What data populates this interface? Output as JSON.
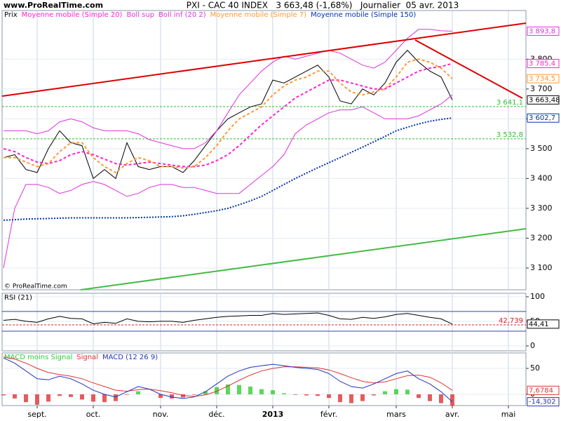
{
  "watermark": "www.ProRealTime.com",
  "copyright": "© ProRealTime.com",
  "title": "PXI - CAC 40 INDEX   3 663,48 (-1,68%)   Journalier  05 avr. 2013",
  "chart_data": [
    {
      "type": "line",
      "categories": [
        null,
        null,
        null,
        "sept.",
        null,
        null,
        null,
        null,
        "oct.",
        null,
        null,
        null,
        null,
        null,
        "nov.",
        null,
        null,
        null,
        null,
        "déc.",
        null,
        null,
        null,
        null,
        "2013",
        null,
        null,
        null,
        null,
        "févr.",
        null,
        null,
        null,
        null,
        null,
        "mars",
        null,
        null,
        null,
        null,
        "avr.",
        null,
        null,
        null,
        null,
        "mai",
        null
      ],
      "ylim": [
        3027,
        3963
      ],
      "yticks": [
        {
          "value": 3100,
          "label": "3 100"
        },
        {
          "value": 3200,
          "label": "3 200"
        },
        {
          "value": 3300,
          "label": "3 300"
        },
        {
          "value": 3400,
          "label": "3 400"
        },
        {
          "value": 3500,
          "label": "3 500"
        },
        {
          "value": 3600,
          "label": "3 600"
        },
        {
          "value": 3700,
          "label": "3 700"
        },
        {
          "value": 3800,
          "label": "3 800"
        }
      ],
      "levels": [
        {
          "value": 3641.1,
          "label": "3 641,1",
          "color": "#33bb33"
        },
        {
          "value": 3532.8,
          "label": "3 532,8",
          "color": "#33bb33"
        }
      ],
      "series": [
        {
          "name": "Prix",
          "color": "#000000",
          "style": "solid",
          "values": [
            3470,
            3480,
            3430,
            3420,
            3500,
            3560,
            3520,
            3510,
            3400,
            3430,
            3400,
            3520,
            3440,
            3430,
            3440,
            3440,
            3420,
            3460,
            3510,
            3560,
            3600,
            3620,
            3640,
            3650,
            3730,
            3720,
            3740,
            3760,
            3780,
            3740,
            3660,
            3650,
            3700,
            3680,
            3720,
            3790,
            3830,
            3790,
            3760,
            3740,
            3663.48,
            null,
            null,
            null,
            null,
            null,
            null
          ],
          "value_labels": [
            null,
            null,
            null,
            null,
            null,
            null,
            null,
            null,
            null,
            null,
            null,
            null,
            null,
            null,
            null,
            null,
            null,
            null,
            null,
            null,
            null,
            null,
            null,
            null,
            null,
            null,
            null,
            null,
            null,
            null,
            null,
            null,
            null,
            null,
            null,
            null,
            null,
            null,
            null,
            null,
            "3 663,48",
            null,
            null,
            null,
            null,
            null,
            null
          ]
        },
        {
          "name": "Moyenne mobile (Simple 20)",
          "color": "#ff22cc",
          "style": "dashed",
          "values": [
            3500,
            3490,
            3470,
            3455,
            3450,
            3460,
            3480,
            3490,
            3480,
            3465,
            3450,
            3445,
            3450,
            3455,
            3450,
            3445,
            3440,
            3440,
            3445,
            3460,
            3480,
            3510,
            3545,
            3580,
            3610,
            3640,
            3670,
            3690,
            3710,
            3730,
            3730,
            3720,
            3710,
            3700,
            3700,
            3720,
            3740,
            3760,
            3770,
            3775,
            3785.4,
            null,
            null,
            null,
            null,
            null,
            null
          ],
          "value_labels": [
            null,
            null,
            null,
            null,
            null,
            null,
            null,
            null,
            null,
            null,
            null,
            null,
            null,
            null,
            null,
            null,
            null,
            null,
            null,
            null,
            null,
            null,
            null,
            null,
            null,
            null,
            null,
            null,
            null,
            null,
            null,
            null,
            null,
            null,
            null,
            null,
            null,
            null,
            null,
            null,
            "3 785,4",
            null,
            null,
            null,
            null,
            null,
            null
          ]
        },
        {
          "name": "Boll sup",
          "color": "#dd33dd",
          "style": "solid",
          "values": [
            3560,
            3560,
            3560,
            3550,
            3560,
            3590,
            3600,
            3590,
            3570,
            3560,
            3560,
            3560,
            3550,
            3530,
            3520,
            3510,
            3500,
            3500,
            3520,
            3560,
            3620,
            3680,
            3720,
            3760,
            3790,
            3810,
            3800,
            3810,
            3820,
            3830,
            3820,
            3800,
            3780,
            3770,
            3790,
            3830,
            3870,
            3900,
            3900,
            3895,
            3893.8,
            null,
            null,
            null,
            null,
            null,
            null
          ],
          "value_labels": [
            null,
            null,
            null,
            null,
            null,
            null,
            null,
            null,
            null,
            null,
            null,
            null,
            null,
            null,
            null,
            null,
            null,
            null,
            null,
            null,
            null,
            null,
            null,
            null,
            null,
            null,
            null,
            null,
            null,
            null,
            null,
            null,
            null,
            null,
            null,
            null,
            null,
            null,
            null,
            null,
            "3 893,8",
            null,
            null,
            null,
            null,
            null,
            null
          ]
        },
        {
          "name": "Boll inf (20 2)",
          "color": "#dd33dd",
          "style": "solid",
          "values": [
            3100,
            3300,
            3380,
            3380,
            3370,
            3350,
            3360,
            3380,
            3390,
            3380,
            3360,
            3340,
            3350,
            3370,
            3380,
            3380,
            3370,
            3370,
            3360,
            3350,
            3350,
            3350,
            3380,
            3410,
            3440,
            3480,
            3550,
            3580,
            3600,
            3620,
            3630,
            3630,
            3640,
            3620,
            3600,
            3600,
            3600,
            3610,
            3630,
            3650,
            3680,
            null,
            null,
            null,
            null,
            null,
            null
          ]
        },
        {
          "name": "Moyenne mobile (Simple 7)",
          "color": "#ff9933",
          "style": "dashed",
          "values": [
            3470,
            3470,
            3455,
            3440,
            3450,
            3490,
            3520,
            3520,
            3470,
            3440,
            3420,
            3450,
            3470,
            3460,
            3440,
            3440,
            3435,
            3440,
            3470,
            3510,
            3560,
            3600,
            3620,
            3640,
            3680,
            3710,
            3730,
            3740,
            3760,
            3760,
            3720,
            3690,
            3680,
            3690,
            3700,
            3740,
            3790,
            3800,
            3790,
            3770,
            3734.5,
            null,
            null,
            null,
            null,
            null,
            null
          ],
          "value_labels": [
            null,
            null,
            null,
            null,
            null,
            null,
            null,
            null,
            null,
            null,
            null,
            null,
            null,
            null,
            null,
            null,
            null,
            null,
            null,
            null,
            null,
            null,
            null,
            null,
            null,
            null,
            null,
            null,
            null,
            null,
            null,
            null,
            null,
            null,
            null,
            null,
            null,
            null,
            null,
            null,
            "3 734,5",
            null,
            null,
            null,
            null,
            null,
            null
          ]
        },
        {
          "name": "Moyenne mobile (Simple 150)",
          "color": "#0033aa",
          "style": "dotted",
          "values": [
            3260,
            3262,
            3264,
            3265,
            3266,
            3267,
            3268,
            3268,
            3268,
            3268,
            3268,
            3268,
            3269,
            3270,
            3271,
            3272,
            3275,
            3280,
            3286,
            3292,
            3300,
            3312,
            3325,
            3340,
            3360,
            3380,
            3400,
            3418,
            3436,
            3453,
            3470,
            3488,
            3505,
            3523,
            3541,
            3560,
            3572,
            3583,
            3592,
            3598,
            3602.7,
            null,
            null,
            null,
            null,
            null,
            null
          ],
          "value_labels": [
            null,
            null,
            null,
            null,
            null,
            null,
            null,
            null,
            null,
            null,
            null,
            null,
            null,
            null,
            null,
            null,
            null,
            null,
            null,
            null,
            null,
            null,
            null,
            null,
            null,
            null,
            null,
            null,
            null,
            null,
            null,
            null,
            null,
            null,
            null,
            null,
            null,
            null,
            null,
            null,
            "3 602,7",
            null,
            null,
            null,
            null,
            null,
            null
          ]
        }
      ]
    },
    {
      "type": "line",
      "title": "RSI (21)",
      "ylim": [
        -10,
        107
      ],
      "yticks": [
        0,
        50,
        100
      ],
      "levels": [
        {
          "value": 70,
          "color": "#3344aa"
        },
        {
          "value": 30,
          "color": "#3344aa"
        },
        {
          "value": 42.739,
          "label": "42,739",
          "color": "#dd2222"
        }
      ],
      "series": [
        {
          "name": "RSI",
          "color": "#000000",
          "style": "solid",
          "values": [
            52,
            54,
            50,
            48,
            55,
            60,
            56,
            55,
            45,
            48,
            46,
            55,
            50,
            49,
            50,
            50,
            48,
            52,
            55,
            58,
            60,
            61,
            62,
            62,
            66,
            64,
            65,
            66,
            67,
            62,
            55,
            54,
            58,
            56,
            59,
            64,
            66,
            62,
            58,
            55,
            44.41,
            null,
            null,
            null,
            null,
            null,
            null
          ],
          "value_labels": [
            null,
            null,
            null,
            null,
            null,
            null,
            null,
            null,
            null,
            null,
            null,
            null,
            null,
            null,
            null,
            null,
            null,
            null,
            null,
            null,
            null,
            null,
            null,
            null,
            null,
            null,
            null,
            null,
            null,
            null,
            null,
            null,
            null,
            null,
            null,
            null,
            null,
            null,
            null,
            null,
            "44,41",
            null,
            null,
            null,
            null,
            null,
            null
          ]
        }
      ]
    },
    {
      "type": "line",
      "ylim": [
        -21.6,
        79.7
      ],
      "yticks": [
        0,
        50
      ],
      "series": [
        {
          "name": "MACD moins Signal",
          "type": "bar",
          "color": "#33cc33",
          "negative_color": "#dd3333",
          "values": [
            -2,
            -8,
            -15,
            -20,
            -14,
            -3,
            -5,
            -10,
            -14,
            -15,
            -13,
            -1,
            6,
            0,
            -7,
            -8,
            -6,
            -1,
            6,
            14,
            19,
            18,
            15,
            10,
            8,
            2,
            -1,
            -2,
            -3,
            -7,
            -15,
            -17,
            -13,
            -2,
            6,
            10,
            9,
            -7,
            -13,
            -17,
            -21.9804,
            null,
            null,
            null,
            null,
            null,
            null
          ]
        },
        {
          "name": "Signal",
          "color": "#dd3333",
          "style": "solid",
          "values": [
            72,
            68,
            60,
            50,
            42,
            38,
            35,
            30,
            22,
            15,
            8,
            6,
            9,
            10,
            7,
            3,
            -2,
            -4,
            -1,
            6,
            16,
            27,
            37,
            45,
            50,
            53,
            53,
            52,
            51,
            47,
            40,
            32,
            25,
            22,
            24,
            30,
            36,
            37,
            33,
            22,
            7.6784,
            null,
            null,
            null,
            null,
            null,
            null
          ],
          "value_labels": [
            null,
            null,
            null,
            null,
            null,
            null,
            null,
            null,
            null,
            null,
            null,
            null,
            null,
            null,
            null,
            null,
            null,
            null,
            null,
            null,
            null,
            null,
            null,
            null,
            null,
            null,
            null,
            null,
            null,
            null,
            null,
            null,
            null,
            null,
            null,
            null,
            null,
            null,
            null,
            null,
            "7,6784",
            null,
            null,
            null,
            null,
            null,
            null
          ]
        },
        {
          "name": "MACD (12 26 9)",
          "color": "#2233bb",
          "style": "solid",
          "values": [
            70,
            60,
            45,
            30,
            28,
            35,
            30,
            20,
            8,
            0,
            -5,
            5,
            15,
            10,
            0,
            -5,
            -8,
            -5,
            5,
            20,
            35,
            45,
            52,
            55,
            58,
            55,
            52,
            50,
            48,
            40,
            25,
            15,
            12,
            20,
            30,
            40,
            45,
            30,
            20,
            5,
            -14.302,
            null,
            null,
            null,
            null,
            null,
            null
          ],
          "value_labels": [
            null,
            null,
            null,
            null,
            null,
            null,
            null,
            null,
            null,
            null,
            null,
            null,
            null,
            null,
            null,
            null,
            null,
            null,
            null,
            null,
            null,
            null,
            null,
            null,
            null,
            null,
            null,
            null,
            null,
            null,
            null,
            null,
            null,
            null,
            null,
            null,
            null,
            null,
            null,
            null,
            "-14,302",
            null,
            null,
            null,
            null,
            null,
            null
          ]
        }
      ]
    }
  ]
}
